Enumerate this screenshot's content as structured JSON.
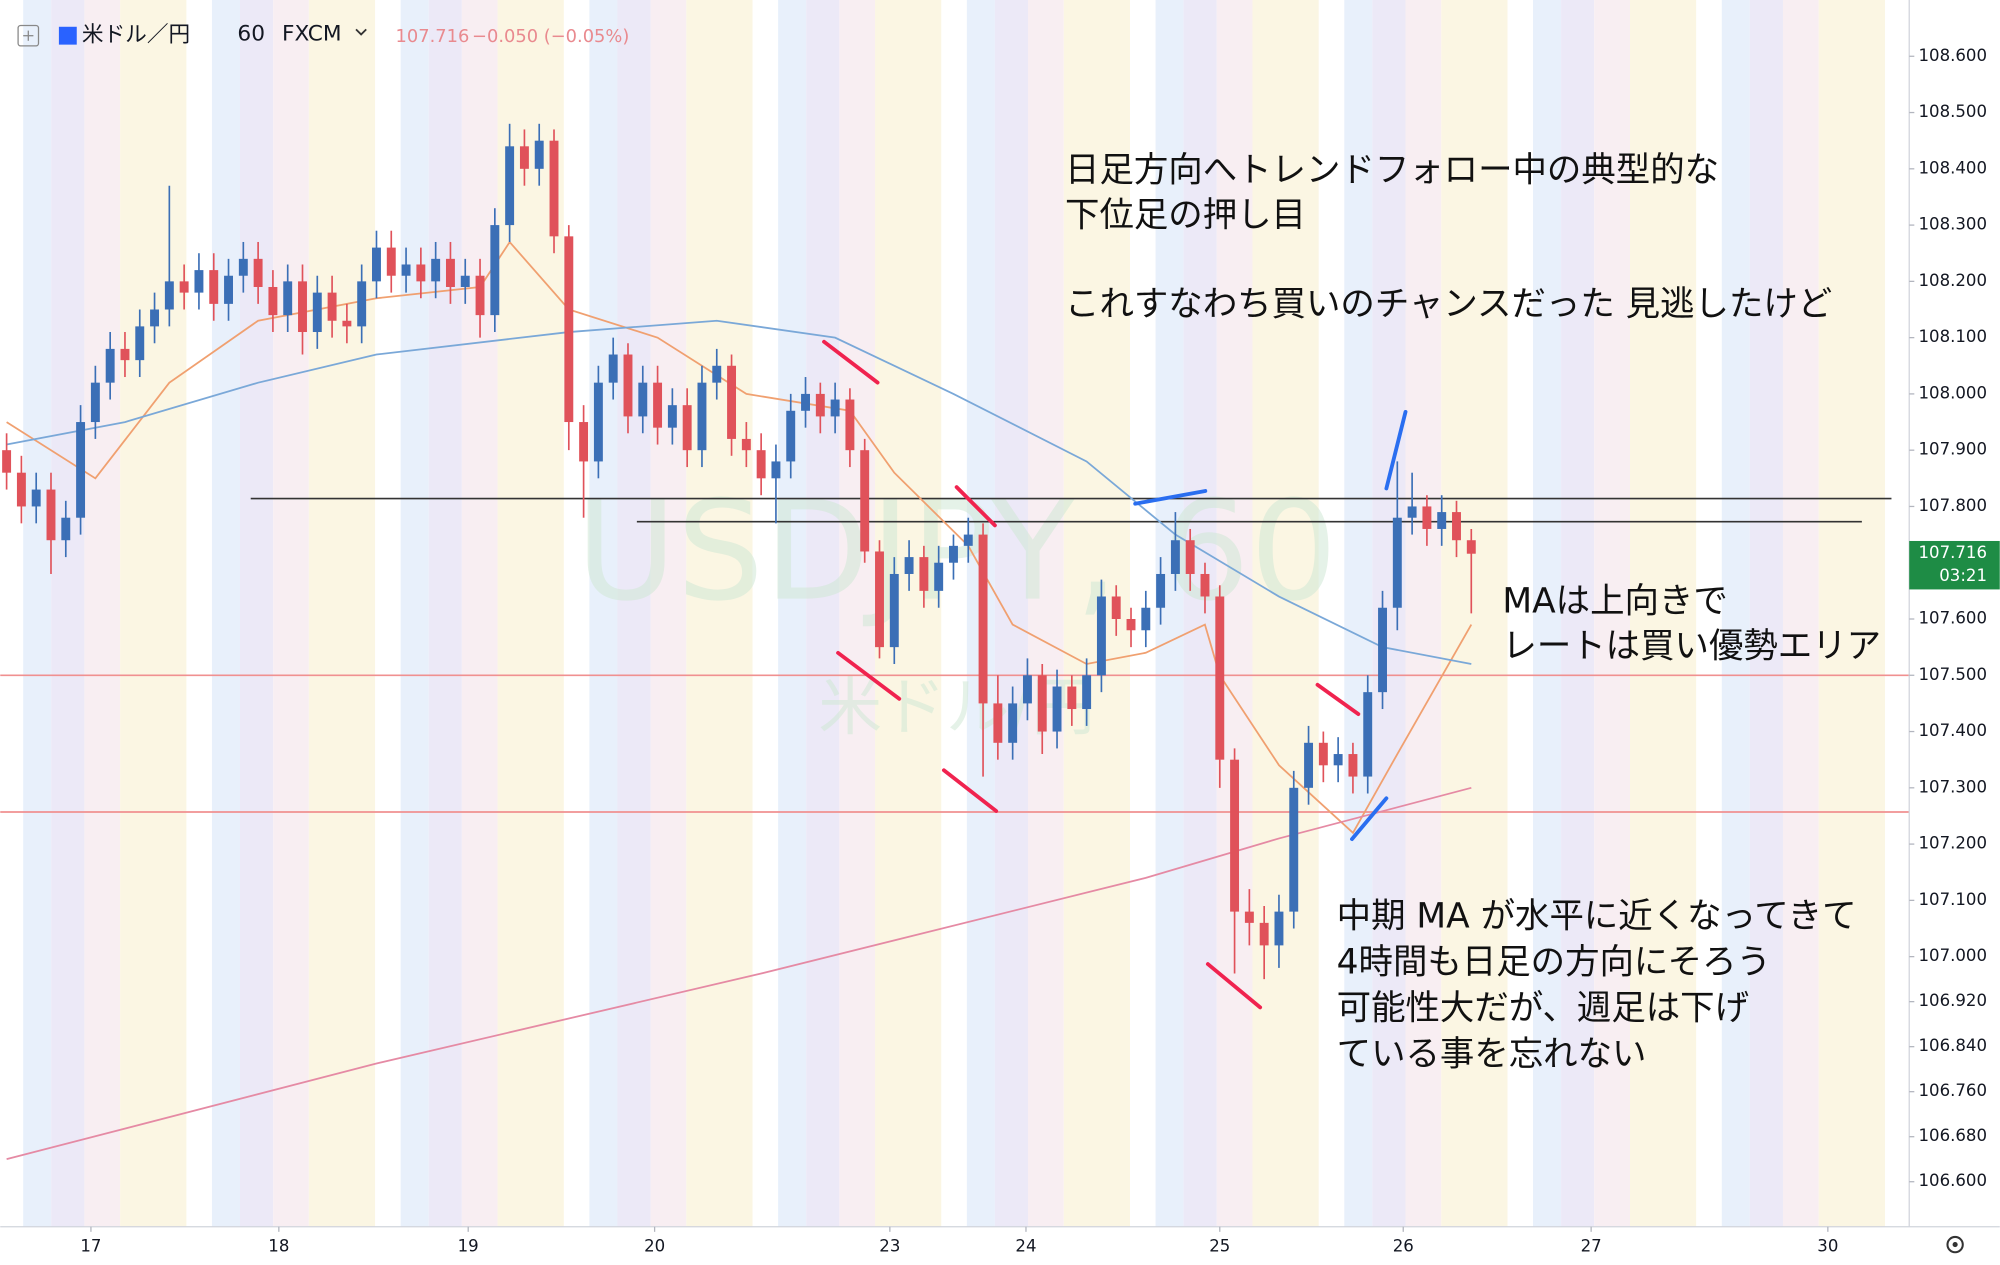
{
  "header": {
    "symbol": "米ドル／円",
    "interval": "60",
    "source": "FXCM",
    "last": "107.716",
    "change": "−0.050 (−0.05%)"
  },
  "chart_data": {
    "type": "candlestick",
    "watermark": [
      "USDJPY, 60",
      "米ドル/円"
    ],
    "colors": {
      "up": "#3b6fb6",
      "down": "#e0525a"
    },
    "candles": {
      "open": [
        107.9,
        107.86,
        107.8,
        107.83,
        107.74,
        107.78,
        107.95,
        108.02,
        108.08,
        108.06,
        108.12,
        108.15,
        108.2,
        108.18,
        108.22,
        108.16,
        108.21,
        108.24,
        108.19,
        108.14,
        108.2,
        108.11,
        108.18,
        108.13,
        108.12,
        108.2,
        108.26,
        108.21,
        108.23,
        108.2,
        108.24,
        108.19,
        108.21,
        108.14,
        108.3,
        108.44,
        108.4,
        108.45,
        108.28,
        107.95,
        107.88,
        108.02,
        108.07,
        107.96,
        108.02,
        107.94,
        107.98,
        107.9,
        108.02,
        108.05,
        107.92,
        107.9,
        107.85,
        107.88,
        107.97,
        108.0,
        107.96,
        107.99,
        107.9,
        107.72,
        107.55,
        107.68,
        107.71,
        107.65,
        107.7,
        107.73,
        107.75,
        107.45,
        107.38,
        107.45,
        107.5,
        107.4,
        107.48,
        107.44,
        107.5,
        107.64,
        107.6,
        107.58,
        107.62,
        107.68,
        107.74,
        107.68,
        107.64,
        107.35,
        107.08,
        107.06,
        107.02,
        107.08,
        107.3,
        107.38,
        107.34,
        107.36,
        107.32,
        107.47,
        107.62,
        107.78,
        107.8,
        107.76,
        107.79,
        107.74
      ],
      "high": [
        107.93,
        107.89,
        107.86,
        107.86,
        107.81,
        107.98,
        108.05,
        108.11,
        108.11,
        108.15,
        108.18,
        108.37,
        108.23,
        108.25,
        108.25,
        108.24,
        108.27,
        108.27,
        108.22,
        108.23,
        108.23,
        108.21,
        108.21,
        108.16,
        108.23,
        108.29,
        108.29,
        108.26,
        108.26,
        108.27,
        108.27,
        108.24,
        108.24,
        108.33,
        108.48,
        108.47,
        108.48,
        108.47,
        108.3,
        107.98,
        108.05,
        108.1,
        108.09,
        108.05,
        108.05,
        108.01,
        108.01,
        108.05,
        108.08,
        108.07,
        107.95,
        107.93,
        107.91,
        108.0,
        108.03,
        108.02,
        108.02,
        108.01,
        107.92,
        107.74,
        107.71,
        107.74,
        107.73,
        107.73,
        107.75,
        107.78,
        107.77,
        107.5,
        107.48,
        107.53,
        107.52,
        107.51,
        107.5,
        107.53,
        107.67,
        107.66,
        107.62,
        107.65,
        107.71,
        107.79,
        107.76,
        107.7,
        107.66,
        107.37,
        107.12,
        107.09,
        107.11,
        107.33,
        107.41,
        107.4,
        107.39,
        107.38,
        107.5,
        107.65,
        107.88,
        107.86,
        107.82,
        107.82,
        107.81,
        107.76
      ],
      "low": [
        107.83,
        107.77,
        107.77,
        107.68,
        107.71,
        107.75,
        107.92,
        107.99,
        108.03,
        108.03,
        108.09,
        108.12,
        108.15,
        108.15,
        108.13,
        108.13,
        108.18,
        108.16,
        108.11,
        108.11,
        108.07,
        108.08,
        108.1,
        108.09,
        108.09,
        108.17,
        108.18,
        108.18,
        108.17,
        108.17,
        108.16,
        108.16,
        108.1,
        108.11,
        108.27,
        108.37,
        108.37,
        108.25,
        107.9,
        107.78,
        107.85,
        107.99,
        107.93,
        107.93,
        107.91,
        107.91,
        107.87,
        107.87,
        107.99,
        107.89,
        107.87,
        107.82,
        107.77,
        107.85,
        107.94,
        107.93,
        107.93,
        107.87,
        107.7,
        107.53,
        107.52,
        107.65,
        107.62,
        107.62,
        107.67,
        107.7,
        107.32,
        107.35,
        107.35,
        107.42,
        107.36,
        107.37,
        107.41,
        107.41,
        107.47,
        107.57,
        107.55,
        107.55,
        107.59,
        107.65,
        107.65,
        107.61,
        107.3,
        106.97,
        107.02,
        106.96,
        106.98,
        107.05,
        107.27,
        107.31,
        107.31,
        107.29,
        107.29,
        107.44,
        107.58,
        107.75,
        107.73,
        107.73,
        107.71,
        107.61
      ],
      "close": [
        107.86,
        107.8,
        107.83,
        107.74,
        107.78,
        107.95,
        108.02,
        108.08,
        108.06,
        108.12,
        108.15,
        108.2,
        108.18,
        108.22,
        108.16,
        108.21,
        108.24,
        108.19,
        108.14,
        108.2,
        108.11,
        108.18,
        108.13,
        108.12,
        108.2,
        108.26,
        108.21,
        108.23,
        108.2,
        108.24,
        108.19,
        108.21,
        108.14,
        108.3,
        108.44,
        108.4,
        108.45,
        108.28,
        107.95,
        107.88,
        108.02,
        108.07,
        107.96,
        108.02,
        107.94,
        107.98,
        107.9,
        108.02,
        108.05,
        107.92,
        107.9,
        107.85,
        107.88,
        107.97,
        108.0,
        107.96,
        107.99,
        107.9,
        107.72,
        107.55,
        107.68,
        107.71,
        107.65,
        107.7,
        107.73,
        107.75,
        107.45,
        107.38,
        107.45,
        107.5,
        107.4,
        107.48,
        107.44,
        107.5,
        107.64,
        107.6,
        107.58,
        107.62,
        107.68,
        107.74,
        107.68,
        107.64,
        107.35,
        107.08,
        107.06,
        107.02,
        107.08,
        107.3,
        107.38,
        107.34,
        107.36,
        107.32,
        107.47,
        107.62,
        107.78,
        107.8,
        107.76,
        107.79,
        107.74,
        107.716
      ]
    },
    "lines": [
      {
        "color": "#f0a070",
        "x": [
          0,
          6,
          11,
          17,
          25,
          32,
          34,
          38,
          44,
          50,
          57,
          60,
          65,
          68,
          73,
          77,
          81,
          82,
          86,
          91,
          94,
          99
        ],
        "values": [
          107.95,
          107.85,
          108.02,
          108.13,
          108.17,
          108.19,
          108.27,
          108.15,
          108.1,
          108.0,
          107.97,
          107.86,
          107.73,
          107.59,
          107.52,
          107.54,
          107.59,
          107.5,
          107.34,
          107.22,
          107.36,
          107.59
        ]
      },
      {
        "color": "#7aa8d8",
        "x": [
          0,
          8,
          17,
          25,
          38,
          48,
          56,
          64,
          73,
          79,
          86,
          93,
          99
        ],
        "values": [
          107.91,
          107.95,
          108.02,
          108.07,
          108.11,
          108.13,
          108.1,
          108.0,
          107.88,
          107.75,
          107.64,
          107.55,
          107.52
        ]
      },
      {
        "color": "#e58aa4",
        "x": [
          0,
          25,
          51,
          77,
          86,
          99
        ],
        "values": [
          106.64,
          106.81,
          106.97,
          107.14,
          107.21,
          107.3
        ]
      }
    ],
    "levels": [
      {
        "value": 107.814,
        "color": "#333333",
        "x": [
          16.5,
          127.4
        ]
      },
      {
        "value": 107.773,
        "color": "#333333",
        "x": [
          42.6,
          125.4
        ]
      },
      {
        "value": 107.5,
        "color": "#f09090",
        "x": [
          -0.43,
          128.6
        ]
      },
      {
        "value": 107.257,
        "color": "#f09090",
        "x": [
          -0.43,
          128.6
        ]
      }
    ],
    "last_price": {
      "value": 107.716,
      "label": "107.716",
      "countdown": "03:21",
      "color": "#1e8c45"
    },
    "xlim": [
      -0.43,
      128.6
    ],
    "ylim": [
      106.52,
      108.7
    ],
    "xticks": [
      {
        "value": 5.7,
        "label": "17"
      },
      {
        "value": 18.4,
        "label": "18"
      },
      {
        "value": 31.2,
        "label": "19"
      },
      {
        "value": 43.8,
        "label": "20"
      },
      {
        "value": 59.7,
        "label": "23"
      },
      {
        "value": 68.9,
        "label": "24"
      },
      {
        "value": 82.0,
        "label": "25"
      },
      {
        "value": 94.4,
        "label": "26"
      },
      {
        "value": 107.1,
        "label": "27"
      },
      {
        "value": 123.1,
        "label": "30"
      }
    ],
    "yticks": [
      {
        "value": 108.6,
        "label": "108.600"
      },
      {
        "value": 108.5,
        "label": "108.500"
      },
      {
        "value": 108.4,
        "label": "108.400"
      },
      {
        "value": 108.3,
        "label": "108.300"
      },
      {
        "value": 108.2,
        "label": "108.200"
      },
      {
        "value": 108.1,
        "label": "108.100"
      },
      {
        "value": 108.0,
        "label": "108.000"
      },
      {
        "value": 107.9,
        "label": "107.900"
      },
      {
        "value": 107.8,
        "label": "107.800"
      },
      {
        "value": 107.6,
        "label": "107.600"
      },
      {
        "value": 107.5,
        "label": "107.500"
      },
      {
        "value": 107.4,
        "label": "107.400"
      },
      {
        "value": 107.3,
        "label": "107.300"
      },
      {
        "value": 107.2,
        "label": "107.200"
      },
      {
        "value": 107.1,
        "label": "107.100"
      },
      {
        "value": 107.0,
        "label": "107.000"
      },
      {
        "value": 106.92,
        "label": "106.920"
      },
      {
        "value": 106.84,
        "label": "106.840"
      },
      {
        "value": 106.76,
        "label": "106.760"
      },
      {
        "value": 106.68,
        "label": "106.680"
      },
      {
        "value": 106.6,
        "label": "106.600"
      }
    ],
    "annotations": [
      {
        "lines": [
          "日足方向へトレンドフォロー中の典型的な",
          "下位足の押し目",
          "",
          "これすなわち買いのチャンスだった 見逃したけど"
        ]
      },
      {
        "lines": [
          "MAは上向きで",
          "レートは買い優勢エリア"
        ]
      },
      {
        "lines": [
          "中期 MA が水平に近くなってきて",
          "4時間も日足の方向にそろう",
          "可能性大だが、週足は下げ",
          "ている事を忘れない"
        ]
      }
    ]
  }
}
